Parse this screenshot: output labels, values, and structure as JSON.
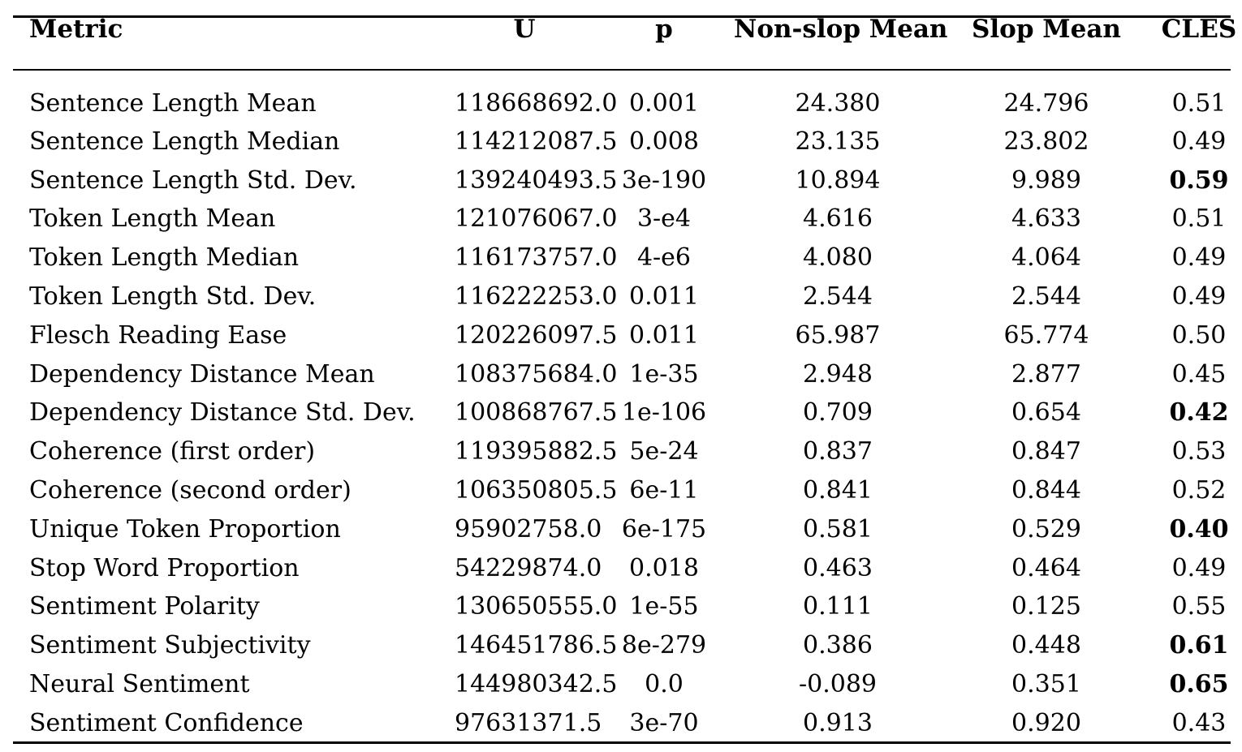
{
  "table": {
    "headers": {
      "metric": "Metric",
      "u": "U",
      "p": "p",
      "non_slop_mean": "Non-slop Mean",
      "slop_mean": "Slop Mean",
      "cles": "CLES"
    },
    "rows": [
      {
        "metric": "Sentence Length Mean",
        "u": "118668692.0",
        "p": "0.001",
        "non_slop_mean": "24.380",
        "slop_mean": "24.796",
        "cles": "0.51",
        "cles_bold": false
      },
      {
        "metric": "Sentence Length Median",
        "u": "114212087.5",
        "p": "0.008",
        "non_slop_mean": "23.135",
        "slop_mean": "23.802",
        "cles": "0.49",
        "cles_bold": false
      },
      {
        "metric": "Sentence Length Std. Dev.",
        "u": "139240493.5",
        "p": "3e-190",
        "non_slop_mean": "10.894",
        "slop_mean": "9.989",
        "cles": "0.59",
        "cles_bold": true
      },
      {
        "metric": "Token Length Mean",
        "u": "121076067.0",
        "p": "3-e4",
        "non_slop_mean": "4.616",
        "slop_mean": "4.633",
        "cles": "0.51",
        "cles_bold": false
      },
      {
        "metric": "Token Length Median",
        "u": "116173757.0",
        "p": "4-e6",
        "non_slop_mean": "4.080",
        "slop_mean": "4.064",
        "cles": "0.49",
        "cles_bold": false
      },
      {
        "metric": "Token Length Std. Dev.",
        "u": "116222253.0",
        "p": "0.011",
        "non_slop_mean": "2.544",
        "slop_mean": "2.544",
        "cles": "0.49",
        "cles_bold": false
      },
      {
        "metric": "Flesch Reading Ease",
        "u": "120226097.5",
        "p": "0.011",
        "non_slop_mean": "65.987",
        "slop_mean": "65.774",
        "cles": "0.50",
        "cles_bold": false
      },
      {
        "metric": "Dependency Distance Mean",
        "u": "108375684.0",
        "p": "1e-35",
        "non_slop_mean": "2.948",
        "slop_mean": "2.877",
        "cles": "0.45",
        "cles_bold": false
      },
      {
        "metric": "Dependency Distance Std. Dev.",
        "u": "100868767.5",
        "p": "1e-106",
        "non_slop_mean": "0.709",
        "slop_mean": "0.654",
        "cles": "0.42",
        "cles_bold": true
      },
      {
        "metric": "Coherence (first order)",
        "u": "119395882.5",
        "p": "5e-24",
        "non_slop_mean": "0.837",
        "slop_mean": "0.847",
        "cles": "0.53",
        "cles_bold": false
      },
      {
        "metric": "Coherence (second order)",
        "u": "106350805.5",
        "p": "6e-11",
        "non_slop_mean": "0.841",
        "slop_mean": "0.844",
        "cles": "0.52",
        "cles_bold": false
      },
      {
        "metric": "Unique Token Proportion",
        "u": "95902758.0",
        "p": "6e-175",
        "non_slop_mean": "0.581",
        "slop_mean": "0.529",
        "cles": "0.40",
        "cles_bold": true
      },
      {
        "metric": "Stop Word Proportion",
        "u": "54229874.0",
        "p": "0.018",
        "non_slop_mean": "0.463",
        "slop_mean": "0.464",
        "cles": "0.49",
        "cles_bold": false
      },
      {
        "metric": "Sentiment Polarity",
        "u": "130650555.0",
        "p": "1e-55",
        "non_slop_mean": "0.111",
        "slop_mean": "0.125",
        "cles": "0.55",
        "cles_bold": false
      },
      {
        "metric": "Sentiment Subjectivity",
        "u": "146451786.5",
        "p": "8e-279",
        "non_slop_mean": "0.386",
        "slop_mean": "0.448",
        "cles": "0.61",
        "cles_bold": true
      },
      {
        "metric": "Neural Sentiment",
        "u": "144980342.5",
        "p": "0.0",
        "non_slop_mean": "-0.089",
        "slop_mean": "0.351",
        "cles": "0.65",
        "cles_bold": true
      },
      {
        "metric": "Sentiment Confidence",
        "u": "97631371.5",
        "p": "3e-70",
        "non_slop_mean": "0.913",
        "slop_mean": "0.920",
        "cles": "0.43",
        "cles_bold": false
      }
    ]
  }
}
